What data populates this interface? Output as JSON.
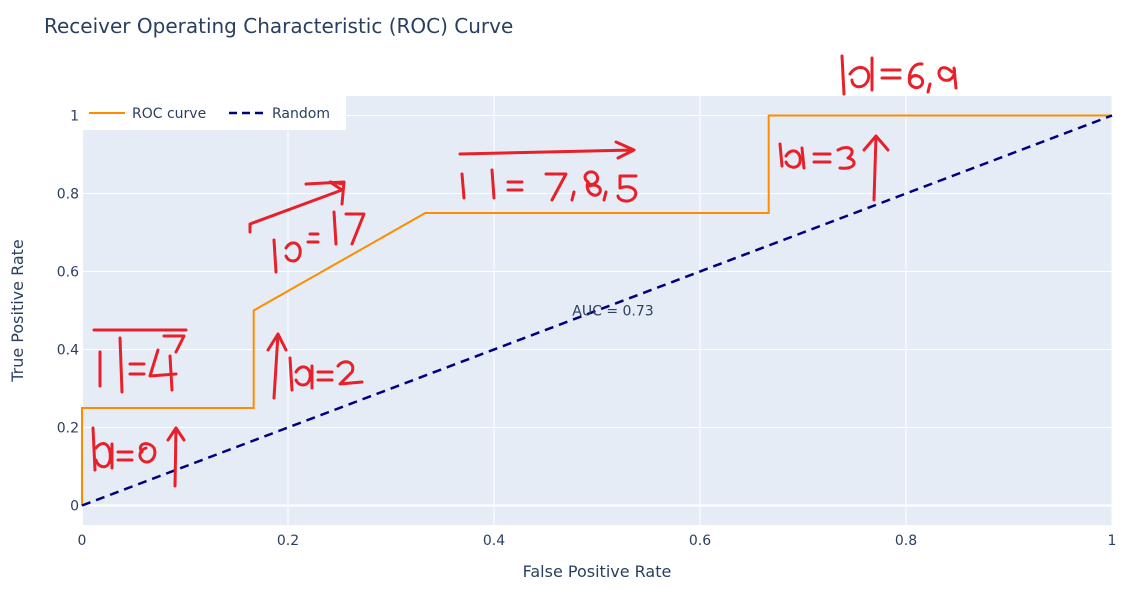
{
  "chart_data": {
    "type": "line",
    "title": "Receiver Operating Characteristic (ROC) Curve",
    "xlabel": "False Positive Rate",
    "ylabel": "True Positive Rate",
    "xlim": [
      0,
      1
    ],
    "ylim": [
      -0.05,
      1.05
    ],
    "x_ticks": [
      0,
      0.2,
      0.4,
      0.6,
      0.8,
      1
    ],
    "x_tick_labels": [
      "0",
      "0.2",
      "0.4",
      "0.6",
      "0.8",
      "1"
    ],
    "y_ticks": [
      0,
      0.2,
      0.4,
      0.6,
      0.8,
      1
    ],
    "y_tick_labels": [
      "0",
      "0.2",
      "0.4",
      "0.6",
      "0.8",
      "1"
    ],
    "grid": true,
    "legend": {
      "placement": "top-left",
      "orientation": "horizontal"
    },
    "series": [
      {
        "name": "ROC curve",
        "color": "#ff8c00",
        "dash": "solid",
        "x": [
          0,
          0,
          0.1667,
          0.1667,
          0.3333,
          0.6667,
          0.6667,
          1
        ],
        "y": [
          0,
          0.25,
          0.25,
          0.5,
          0.75,
          0.75,
          1,
          1
        ]
      },
      {
        "name": "Random",
        "color": "#000080",
        "dash": "dash",
        "x": [
          0,
          1
        ],
        "y": [
          0,
          1
        ]
      }
    ],
    "annotations": [
      {
        "text": "AUC = 0.73",
        "x": 0.5,
        "y": 0.5
      }
    ]
  },
  "colors": {
    "plot_background": "#e5ecf6",
    "grid": "#ffffff",
    "text": "#2a3f5f",
    "handwriting": "#e8202a"
  },
  "handwritten_notes": [
    "id=0",
    "id=4",
    "id=2",
    "id=1,7",
    "id=7,8,5",
    "id=3",
    "id=6,9"
  ]
}
